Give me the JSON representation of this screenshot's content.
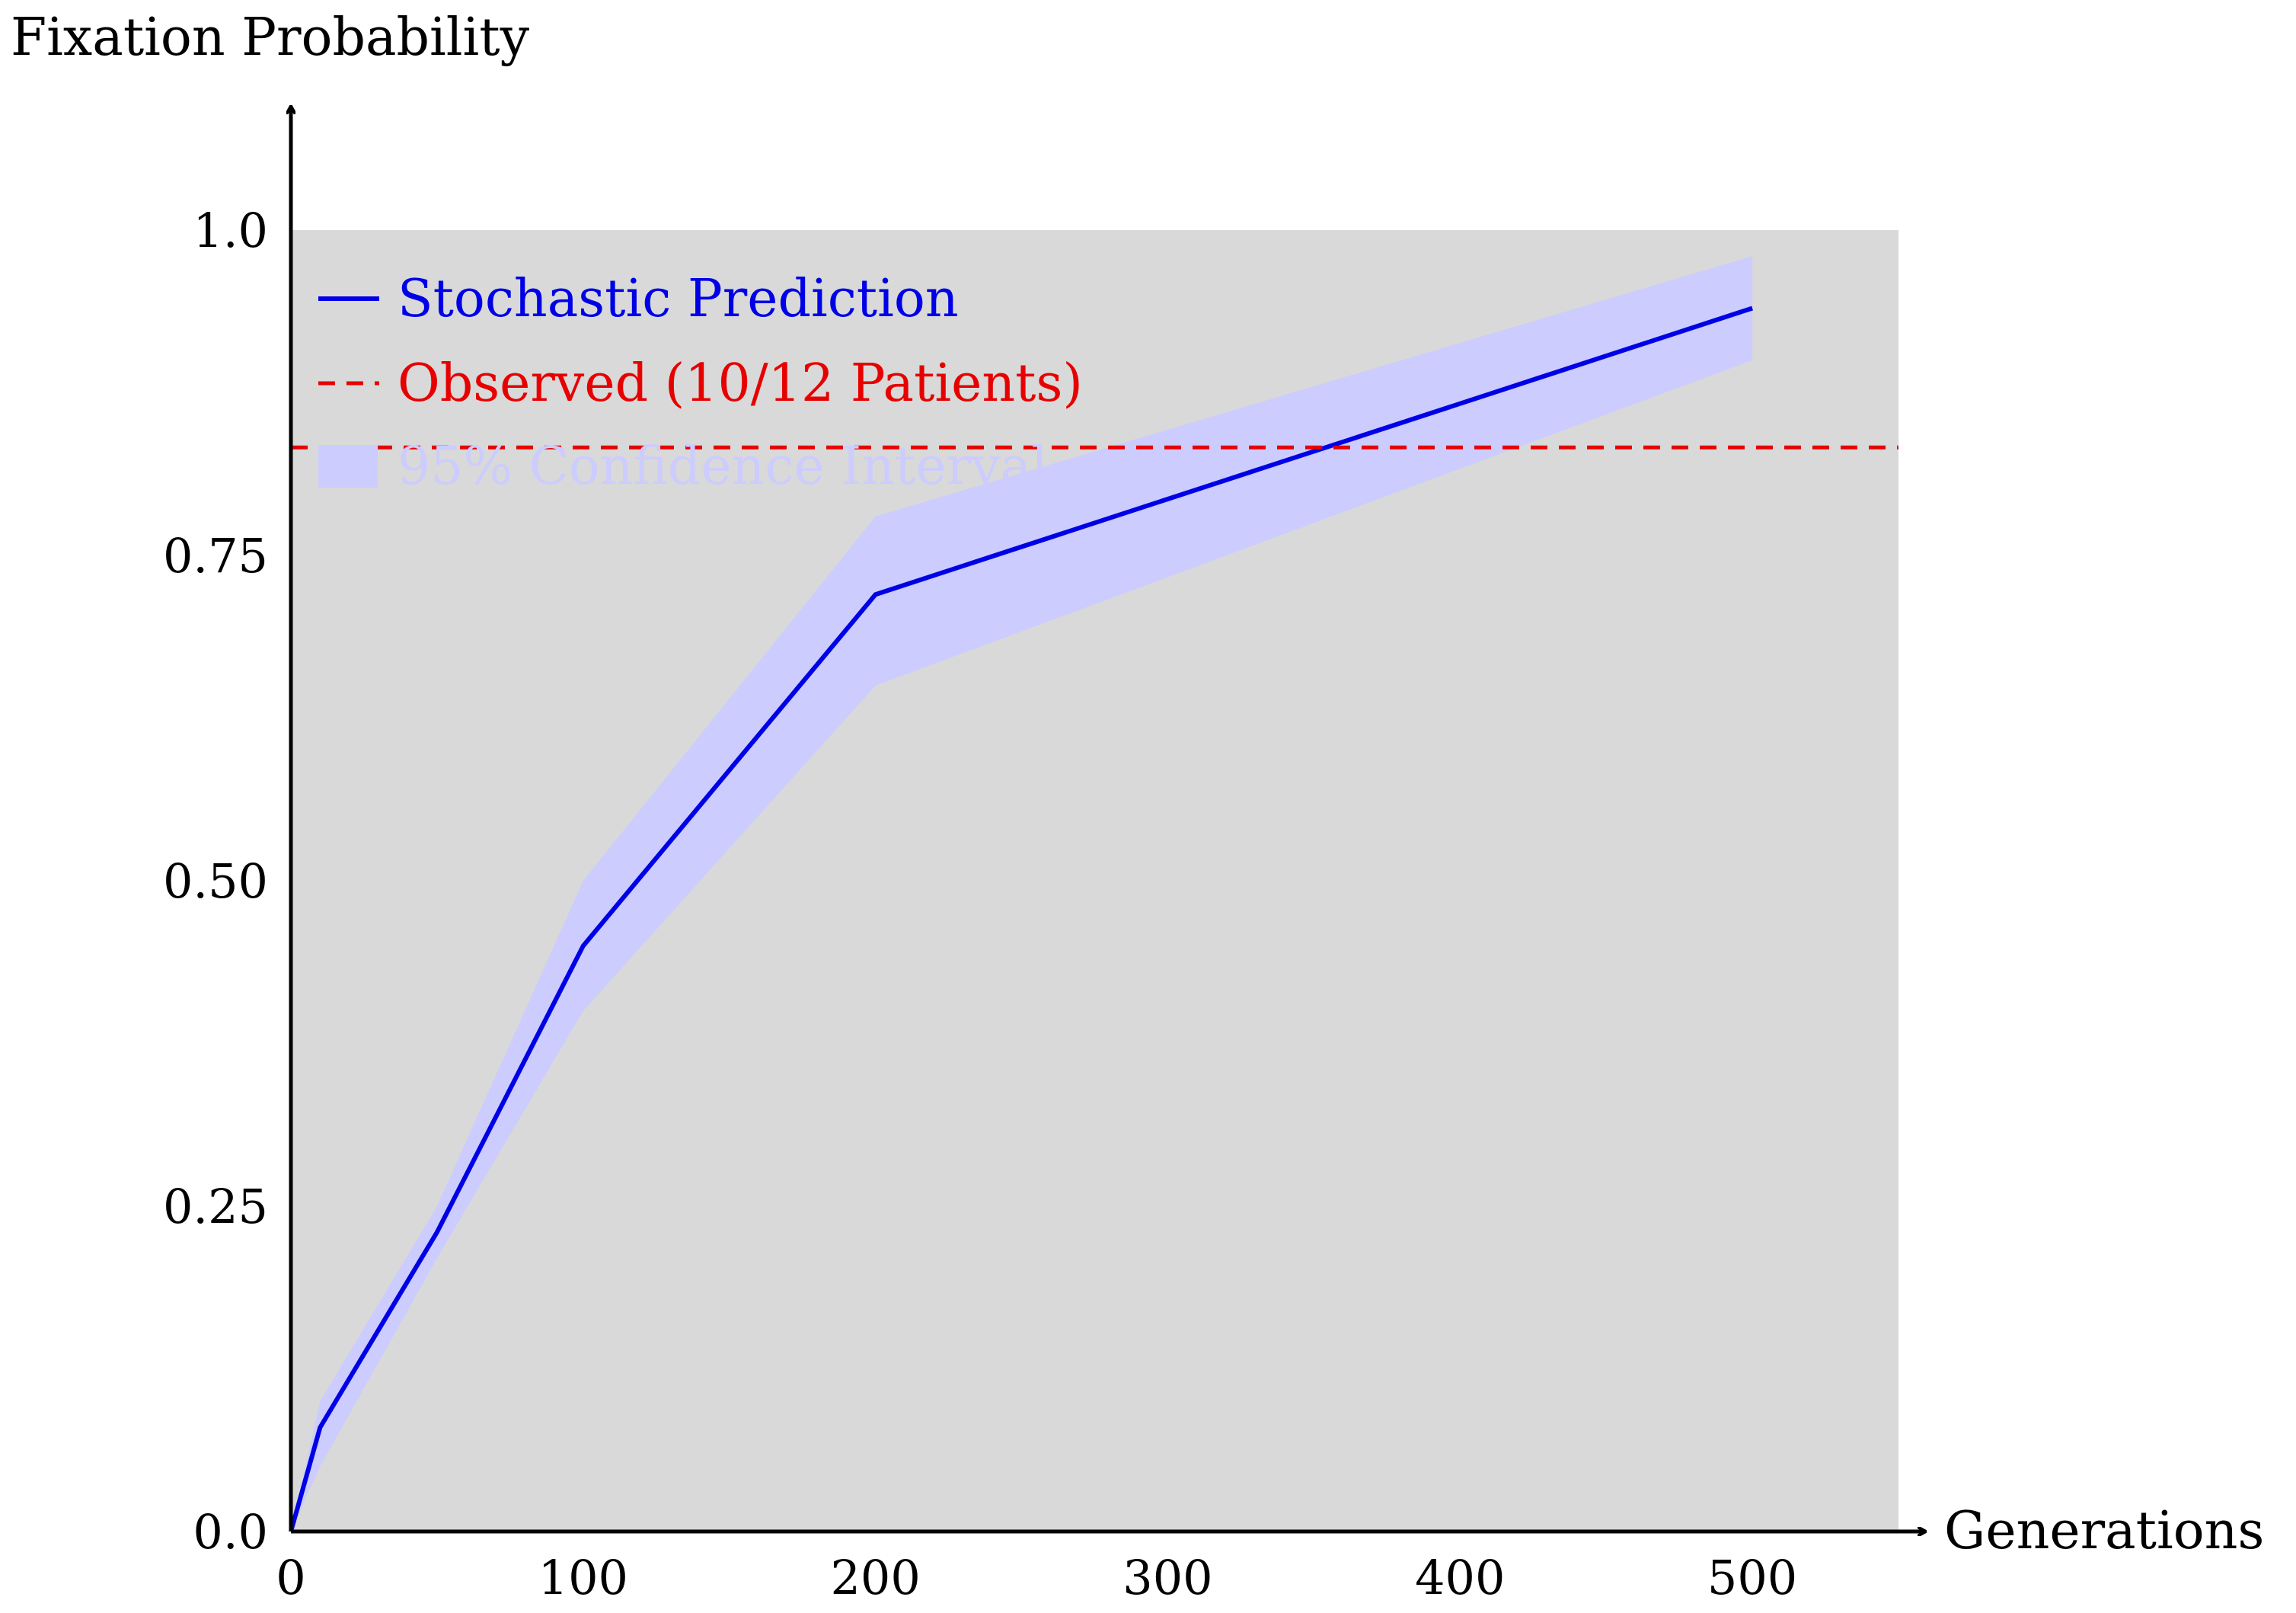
{
  "chart_data": {
    "type": "line",
    "ylabel": "Fixation Probability",
    "xlabel": "Generations",
    "xlim": [
      0,
      550
    ],
    "ylim": [
      0,
      1.0
    ],
    "x_ticks": [
      0,
      100,
      200,
      300,
      400,
      500
    ],
    "x_tick_labels": [
      "0",
      "100",
      "200",
      "300",
      "400",
      "500"
    ],
    "y_ticks": [
      0,
      0.25,
      0.5,
      0.75,
      1.0
    ],
    "y_tick_labels": [
      "0.0",
      "0.25",
      "0.50",
      "0.75",
      "1.0"
    ],
    "grid": false,
    "plot_background": "#d9d9d9",
    "legend_position": "top-left",
    "series": [
      {
        "name": "Stochastic Prediction",
        "kind": "line",
        "color": "#0000e6",
        "x": [
          0,
          10,
          50,
          100,
          200,
          500
        ],
        "y": [
          0,
          0.08,
          0.23,
          0.45,
          0.72,
          0.94
        ]
      },
      {
        "name": "Observed (10/12 Patients)",
        "kind": "hline",
        "color": "#e60000",
        "dash": true,
        "y": 0.833
      },
      {
        "name": "95% Confidence Interval",
        "kind": "band",
        "color": "#ccccff",
        "x": [
          0,
          10,
          50,
          100,
          200,
          500
        ],
        "lower": [
          0,
          0.05,
          0.21,
          0.4,
          0.65,
          0.9
        ],
        "upper": [
          0,
          0.1,
          0.25,
          0.5,
          0.78,
          0.98
        ]
      }
    ]
  }
}
